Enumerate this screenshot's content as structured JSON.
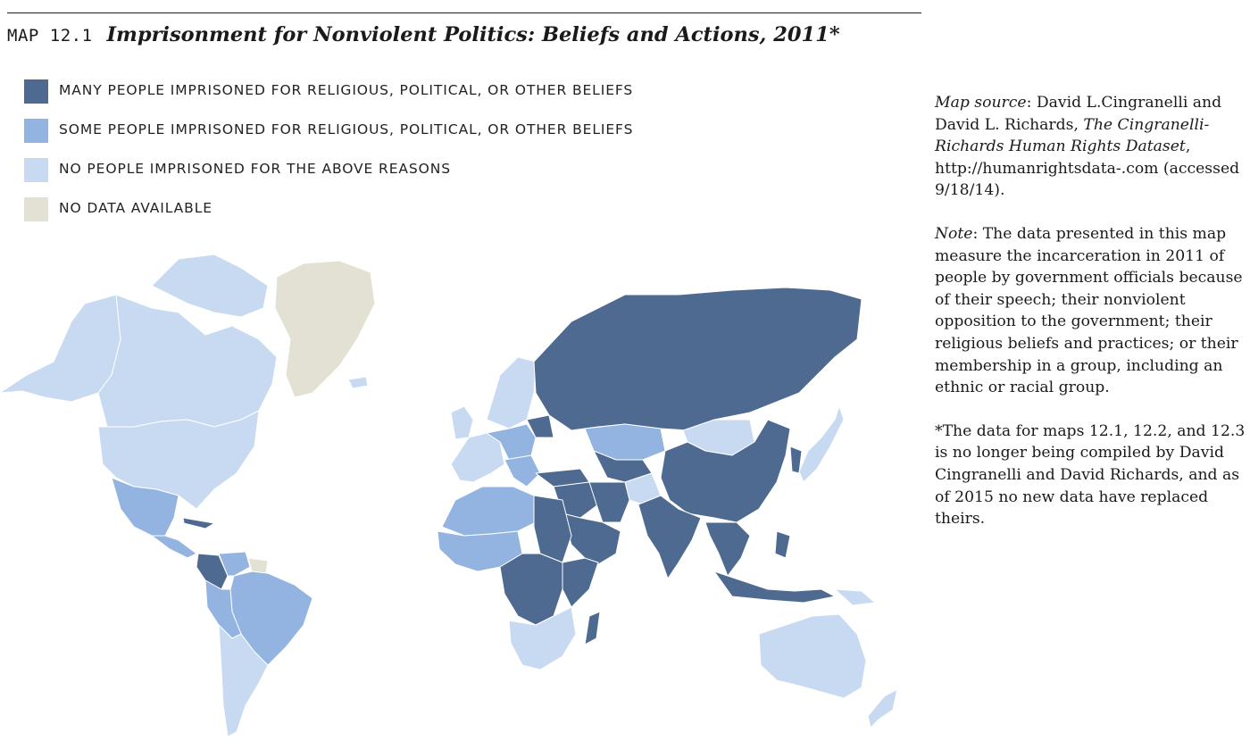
{
  "header": {
    "map_label": "MAP 12.1",
    "title": "Imprisonment for Nonviolent Politics: Beliefs and Actions, 2011*"
  },
  "colors": {
    "many": "#4e6a91",
    "some": "#93b4e0",
    "none": "#c8daf1",
    "no_data": "#e2e1d4",
    "border": "#ffffff"
  },
  "legend": [
    {
      "key": "many",
      "label": "MANY PEOPLE IMPRISONED FOR RELIGIOUS, POLITICAL, OR OTHER BELIEFS"
    },
    {
      "key": "some",
      "label": "SOME PEOPLE IMPRISONED FOR RELIGIOUS, POLITICAL, OR OTHER BELIEFS"
    },
    {
      "key": "none",
      "label": "NO PEOPLE IMPRISONED FOR THE ABOVE REASONS"
    },
    {
      "key": "no_data",
      "label": "NO DATA AVAILABLE"
    }
  ],
  "notes": {
    "source_label": "Map source",
    "source_text_1": ": David L.Cingranelli and David L. Richards, ",
    "source_title": "The Cingranelli-Richards Human Rights Dataset",
    "source_text_2": ", http://humanrightsdata-.com (accessed 9/18/14).",
    "note_label": "Note",
    "note_text": ": The data presented in this map measure the incarceration in 2011 of people by government officials because of their speech; their nonviolent opposition to the government; their religious beliefs and practices; or their membership in a group, including an ethnic or racial group.",
    "footnote": "*The data for maps 12.1, 12.2, and 12.3 is no longer being compiled by David Cingranelli and David Richards, and as of 2015 no new data have replaced theirs."
  },
  "regions": [
    {
      "name": "alaska",
      "category": "none"
    },
    {
      "name": "canada",
      "category": "none"
    },
    {
      "name": "canadian-arctic-islands",
      "category": "none"
    },
    {
      "name": "usa",
      "category": "none"
    },
    {
      "name": "mexico",
      "category": "some"
    },
    {
      "name": "cuba",
      "category": "many"
    },
    {
      "name": "central-america",
      "category": "some"
    },
    {
      "name": "colombia",
      "category": "many"
    },
    {
      "name": "venezuela",
      "category": "some"
    },
    {
      "name": "guianas",
      "category": "no_data"
    },
    {
      "name": "brazil",
      "category": "some"
    },
    {
      "name": "peru-bolivia",
      "category": "some"
    },
    {
      "name": "southern-cone",
      "category": "none"
    },
    {
      "name": "greenland",
      "category": "no_data"
    },
    {
      "name": "iceland",
      "category": "none"
    },
    {
      "name": "uk-ireland",
      "category": "none"
    },
    {
      "name": "scandinavia",
      "category": "none"
    },
    {
      "name": "western-europe",
      "category": "none"
    },
    {
      "name": "central-europe",
      "category": "some"
    },
    {
      "name": "balkans",
      "category": "some"
    },
    {
      "name": "belarus",
      "category": "many"
    },
    {
      "name": "turkey",
      "category": "many"
    },
    {
      "name": "russia",
      "category": "many"
    },
    {
      "name": "kazakhstan",
      "category": "some"
    },
    {
      "name": "central-asia",
      "category": "many"
    },
    {
      "name": "afghanistan",
      "category": "none"
    },
    {
      "name": "middle-east",
      "category": "many"
    },
    {
      "name": "iran",
      "category": "many"
    },
    {
      "name": "arabia",
      "category": "many"
    },
    {
      "name": "mongolia",
      "category": "none"
    },
    {
      "name": "china",
      "category": "many"
    },
    {
      "name": "korea",
      "category": "many"
    },
    {
      "name": "japan",
      "category": "none"
    },
    {
      "name": "india",
      "category": "many"
    },
    {
      "name": "southeast-asia",
      "category": "many"
    },
    {
      "name": "indonesia",
      "category": "many"
    },
    {
      "name": "philippines",
      "category": "many"
    },
    {
      "name": "papua-new-guinea",
      "category": "none"
    },
    {
      "name": "north-africa-west",
      "category": "some"
    },
    {
      "name": "egypt-sudan",
      "category": "many"
    },
    {
      "name": "west-africa",
      "category": "some"
    },
    {
      "name": "central-africa",
      "category": "many"
    },
    {
      "name": "east-africa",
      "category": "many"
    },
    {
      "name": "southern-africa",
      "category": "none"
    },
    {
      "name": "madagascar",
      "category": "many"
    },
    {
      "name": "australia",
      "category": "none"
    },
    {
      "name": "new-zealand",
      "category": "none"
    }
  ]
}
